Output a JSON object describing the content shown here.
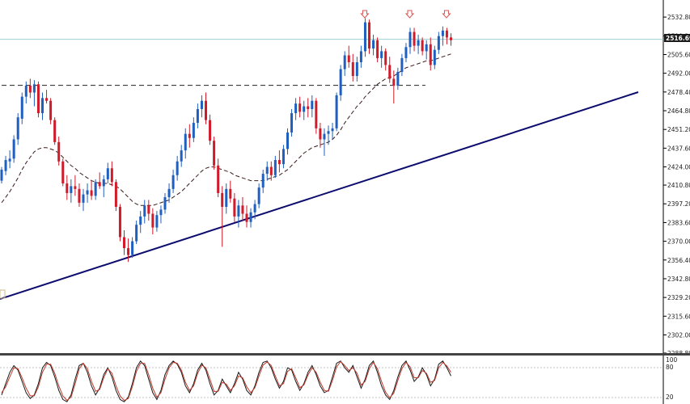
{
  "chart_data": [
    {
      "type": "candlestick",
      "panel": "price",
      "y_ticks": [
        "2532.80",
        "2519.20",
        "2505.60",
        "2492.00",
        "2478.40",
        "2464.80",
        "2451.20",
        "2437.60",
        "2424.00",
        "2410.80",
        "2397.20",
        "2383.60",
        "2370.00",
        "2356.40",
        "2342.80",
        "2329.20",
        "2315.60",
        "2302.00",
        "2288.80"
      ],
      "ylim": [
        2288.8,
        2540.5
      ],
      "last_price": "2516.69",
      "colors": {
        "up": "#1f5fbf",
        "down": "#d11a2a",
        "ma": "#3a1a1a",
        "trendline": "#0c0c6e",
        "resistance": "#222222",
        "price_line": "#9ecfcf",
        "price_tag": "#1a1a1a",
        "arrow": "#d9534f"
      },
      "series": [
        {
          "kind": "ohlc",
          "values": [
            [
              2414,
              2424,
              2412,
              2422
            ],
            [
              2421,
              2432,
              2418,
              2429
            ],
            [
              2428,
              2436,
              2423,
              2430
            ],
            [
              2430,
              2447,
              2427,
              2444
            ],
            [
              2444,
              2463,
              2440,
              2460
            ],
            [
              2459,
              2478,
              2455,
              2475
            ],
            [
              2475,
              2486,
              2470,
              2483
            ],
            [
              2483,
              2488,
              2474,
              2478
            ],
            [
              2478,
              2487,
              2468,
              2484
            ],
            [
              2484,
              2486,
              2460,
              2463
            ],
            [
              2463,
              2478,
              2458,
              2474
            ],
            [
              2474,
              2480,
              2470,
              2472
            ],
            [
              2472,
              2474,
              2455,
              2458
            ],
            [
              2458,
              2460,
              2440,
              2442
            ],
            [
              2442,
              2446,
              2425,
              2428
            ],
            [
              2428,
              2430,
              2410,
              2412
            ],
            [
              2412,
              2418,
              2400,
              2405
            ],
            [
              2405,
              2415,
              2398,
              2410
            ],
            [
              2410,
              2418,
              2403,
              2408
            ],
            [
              2408,
              2412,
              2395,
              2398
            ],
            [
              2398,
              2408,
              2392,
              2404
            ],
            [
              2404,
              2412,
              2398,
              2407
            ],
            [
              2407,
              2414,
              2400,
              2403
            ],
            [
              2403,
              2415,
              2400,
              2413
            ],
            [
              2413,
              2420,
              2408,
              2410
            ],
            [
              2410,
              2418,
              2402,
              2415
            ],
            [
              2415,
              2427,
              2412,
              2423
            ],
            [
              2423,
              2428,
              2410,
              2413
            ],
            [
              2413,
              2415,
              2392,
              2395
            ],
            [
              2395,
              2397,
              2370,
              2373
            ],
            [
              2373,
              2378,
              2360,
              2365
            ],
            [
              2365,
              2372,
              2355,
              2360
            ],
            [
              2360,
              2373,
              2358,
              2370
            ],
            [
              2370,
              2385,
              2368,
              2382
            ],
            [
              2382,
              2392,
              2376,
              2388
            ],
            [
              2388,
              2400,
              2383,
              2396
            ],
            [
              2396,
              2400,
              2385,
              2390
            ],
            [
              2390,
              2394,
              2375,
              2380
            ],
            [
              2380,
              2392,
              2377,
              2389
            ],
            [
              2389,
              2396,
              2383,
              2393
            ],
            [
              2393,
              2405,
              2390,
              2402
            ],
            [
              2402,
              2412,
              2398,
              2408
            ],
            [
              2408,
              2422,
              2405,
              2418
            ],
            [
              2418,
              2432,
              2414,
              2428
            ],
            [
              2428,
              2440,
              2424,
              2436
            ],
            [
              2436,
              2452,
              2430,
              2448
            ],
            [
              2448,
              2455,
              2438,
              2445
            ],
            [
              2445,
              2460,
              2442,
              2456
            ],
            [
              2456,
              2470,
              2452,
              2466
            ],
            [
              2466,
              2476,
              2460,
              2472
            ],
            [
              2472,
              2478,
              2455,
              2458
            ],
            [
              2458,
              2462,
              2440,
              2443
            ],
            [
              2443,
              2446,
              2422,
              2425
            ],
            [
              2425,
              2430,
              2402,
              2405
            ],
            [
              2405,
              2410,
              2366,
              2395
            ],
            [
              2395,
              2412,
              2390,
              2408
            ],
            [
              2408,
              2414,
              2398,
              2401
            ],
            [
              2401,
              2405,
              2384,
              2388
            ],
            [
              2388,
              2400,
              2380,
              2396
            ],
            [
              2396,
              2402,
              2385,
              2390
            ],
            [
              2390,
              2396,
              2380,
              2384
            ],
            [
              2384,
              2394,
              2380,
              2391
            ],
            [
              2391,
              2400,
              2386,
              2397
            ],
            [
              2397,
              2412,
              2394,
              2409
            ],
            [
              2409,
              2422,
              2405,
              2419
            ],
            [
              2419,
              2428,
              2414,
              2424
            ],
            [
              2424,
              2428,
              2414,
              2418
            ],
            [
              2418,
              2432,
              2416,
              2429
            ],
            [
              2429,
              2436,
              2420,
              2426
            ],
            [
              2426,
              2440,
              2423,
              2437
            ],
            [
              2437,
              2452,
              2433,
              2449
            ],
            [
              2449,
              2466,
              2446,
              2463
            ],
            [
              2463,
              2474,
              2458,
              2470
            ],
            [
              2470,
              2475,
              2460,
              2464
            ],
            [
              2464,
              2472,
              2458,
              2468
            ],
            [
              2468,
              2474,
              2460,
              2466
            ],
            [
              2466,
              2476,
              2460,
              2472
            ],
            [
              2472,
              2474,
              2448,
              2452
            ],
            [
              2452,
              2456,
              2438,
              2444
            ],
            [
              2444,
              2452,
              2432,
              2448
            ],
            [
              2448,
              2454,
              2440,
              2450
            ],
            [
              2450,
              2456,
              2444,
              2452
            ],
            [
              2452,
              2478,
              2450,
              2476
            ],
            [
              2476,
              2498,
              2472,
              2495
            ],
            [
              2495,
              2508,
              2490,
              2505
            ],
            [
              2505,
              2512,
              2496,
              2500
            ],
            [
              2500,
              2506,
              2486,
              2490
            ],
            [
              2490,
              2504,
              2486,
              2500
            ],
            [
              2500,
              2512,
              2496,
              2508
            ],
            [
              2508,
              2532,
              2504,
              2529
            ],
            [
              2529,
              2531,
              2506,
              2510
            ],
            [
              2510,
              2520,
              2505,
              2516
            ],
            [
              2516,
              2518,
              2500,
              2503
            ],
            [
              2503,
              2512,
              2496,
              2508
            ],
            [
              2508,
              2510,
              2494,
              2498
            ],
            [
              2498,
              2504,
              2485,
              2488
            ],
            [
              2488,
              2494,
              2470,
              2483
            ],
            [
              2483,
              2496,
              2480,
              2493
            ],
            [
              2493,
              2506,
              2490,
              2503
            ],
            [
              2503,
              2514,
              2500,
              2511
            ],
            [
              2511,
              2525,
              2506,
              2522
            ],
            [
              2522,
              2525,
              2508,
              2512
            ],
            [
              2512,
              2520,
              2506,
              2516
            ],
            [
              2516,
              2518,
              2505,
              2508
            ],
            [
              2508,
              2516,
              2502,
              2513
            ],
            [
              2513,
              2518,
              2494,
              2498
            ],
            [
              2498,
              2512,
              2495,
              2509
            ],
            [
              2509,
              2522,
              2506,
              2519
            ],
            [
              2519,
              2526,
              2512,
              2523
            ],
            [
              2523,
              2525,
              2513,
              2518
            ],
            [
              2518,
              2521,
              2512,
              2516
            ]
          ]
        },
        {
          "kind": "moving_average",
          "values": [
            2398,
            2402,
            2406,
            2411,
            2416,
            2422,
            2427,
            2431,
            2435,
            2437,
            2438,
            2438,
            2437,
            2436,
            2434,
            2431,
            2428,
            2425,
            2423,
            2420,
            2418,
            2416,
            2414,
            2413,
            2412,
            2412,
            2412,
            2411,
            2410,
            2408,
            2405,
            2402,
            2399,
            2397,
            2396,
            2396,
            2396,
            2396,
            2397,
            2398,
            2399,
            2400,
            2402,
            2404,
            2406,
            2409,
            2412,
            2415,
            2418,
            2421,
            2423,
            2424,
            2424,
            2423,
            2422,
            2421,
            2420,
            2418,
            2417,
            2416,
            2415,
            2414,
            2414,
            2414,
            2414,
            2415,
            2416,
            2417,
            2418,
            2420,
            2422,
            2425,
            2428,
            2431,
            2434,
            2436,
            2438,
            2439,
            2440,
            2441,
            2442,
            2444,
            2447,
            2451,
            2456,
            2460,
            2464,
            2468,
            2471,
            2475,
            2478,
            2481,
            2484,
            2486,
            2488,
            2489,
            2490,
            2492,
            2494,
            2496,
            2497,
            2498,
            2499,
            2500,
            2501,
            2501,
            2502,
            2503,
            2504,
            2505,
            2506
          ]
        }
      ],
      "trendline": {
        "x": [
          -1,
          113
        ],
        "y": [
          2331.5,
          2479.5
        ]
      },
      "resistance": {
        "level": 2483.2,
        "x": [
          0,
          78
        ]
      },
      "resistance_arrows": [
        {
          "x": 89,
          "y": 2537
        },
        {
          "x": 100,
          "y": 2535
        },
        {
          "x": 109,
          "y": 2535
        }
      ]
    },
    {
      "type": "line",
      "panel": "stochastic",
      "y_ticks": [
        "100",
        "80",
        "20"
      ],
      "ylim": [
        0,
        100
      ],
      "series": [
        {
          "kind": "main",
          "values": [
            20,
            45,
            70,
            85,
            75,
            50,
            25,
            12,
            20,
            45,
            80,
            92,
            85,
            60,
            30,
            10,
            5,
            20,
            55,
            85,
            90,
            70,
            40,
            20,
            35,
            65,
            80,
            60,
            30,
            10,
            5,
            15,
            45,
            80,
            95,
            85,
            55,
            25,
            10,
            30,
            65,
            85,
            95,
            88,
            70,
            40,
            25,
            45,
            75,
            90,
            75,
            45,
            20,
            30,
            55,
            40,
            25,
            45,
            70,
            55,
            30,
            20,
            40,
            70,
            92,
            95,
            80,
            55,
            35,
            50,
            80,
            75,
            50,
            30,
            45,
            70,
            85,
            65,
            40,
            25,
            30,
            60,
            90,
            95,
            80,
            70,
            85,
            60,
            35,
            55,
            85,
            95,
            70,
            40,
            20,
            10,
            30,
            60,
            85,
            95,
            75,
            50,
            60,
            80,
            65,
            40,
            55,
            88,
            95,
            80,
            62
          ]
        },
        {
          "kind": "signal",
          "values": [
            25,
            38,
            60,
            80,
            78,
            58,
            35,
            18,
            18,
            38,
            70,
            88,
            88,
            68,
            40,
            18,
            8,
            15,
            45,
            78,
            90,
            78,
            50,
            28,
            32,
            58,
            78,
            68,
            40,
            18,
            8,
            12,
            38,
            72,
            90,
            90,
            65,
            35,
            15,
            25,
            55,
            80,
            92,
            90,
            75,
            48,
            30,
            40,
            68,
            86,
            80,
            55,
            28,
            28,
            48,
            44,
            30,
            40,
            62,
            58,
            38,
            25,
            36,
            62,
            86,
            93,
            85,
            62,
            40,
            45,
            72,
            78,
            58,
            36,
            42,
            64,
            80,
            70,
            48,
            30,
            28,
            52,
            82,
            94,
            85,
            74,
            80,
            68,
            42,
            50,
            78,
            92,
            78,
            50,
            26,
            14,
            24,
            52,
            78,
            92,
            82,
            58,
            58,
            74,
            68,
            48,
            52,
            80,
            92,
            84,
            70
          ]
        }
      ]
    }
  ]
}
